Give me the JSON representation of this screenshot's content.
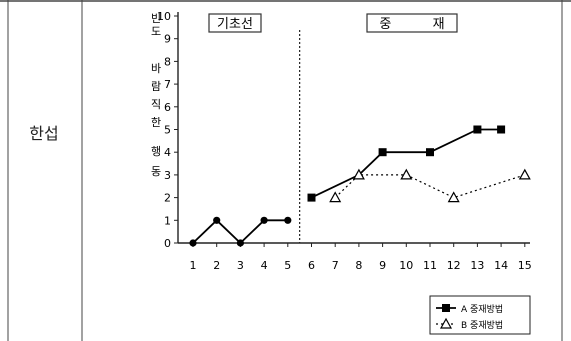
{
  "row_label": "한섭",
  "chart_data": {
    "type": "line",
    "ylabel": "바람직한 행동 빈도",
    "ylabel_top": "빈도",
    "ylabel_main": [
      "바",
      "람",
      "직",
      "한",
      "",
      "행",
      "동"
    ],
    "ylim": [
      0,
      10
    ],
    "yticks": [
      "0",
      "1",
      "2",
      "3",
      "4",
      "5",
      "6",
      "7",
      "8",
      "9",
      "10"
    ],
    "xticks": [
      "1",
      "2",
      "3",
      "4",
      "5",
      "6",
      "7",
      "8",
      "9",
      "10",
      "11",
      "12",
      "13",
      "14",
      "15"
    ],
    "phases": [
      {
        "label": "기초선"
      },
      {
        "label": "중          재"
      }
    ],
    "phase_divider_after_session": 5.5,
    "series": [
      {
        "name": "A 중재방법",
        "marker": "square",
        "line": "solid",
        "segments": [
          {
            "x": [
              1,
              2,
              3,
              4,
              5
            ],
            "y": [
              0,
              1,
              0,
              1,
              1
            ],
            "marker": "circle"
          },
          {
            "x": [
              6,
              9,
              11,
              13,
              14
            ],
            "y": [
              2,
              4,
              4,
              5,
              5
            ],
            "marker": "square",
            "via": [
              [
                8,
                3
              ]
            ]
          }
        ]
      },
      {
        "name": "B 중재방법",
        "marker": "triangle",
        "line": "dotted",
        "segments": [
          {
            "x": [
              7,
              8,
              10,
              12,
              15
            ],
            "y": [
              2,
              3,
              3,
              2,
              3
            ],
            "marker": "triangle",
            "via": [
              [
                9,
                3
              ]
            ]
          }
        ]
      }
    ],
    "legend": [
      {
        "label": "A 중재방법",
        "marker": "square",
        "line": "solid"
      },
      {
        "label": "B 중재방법",
        "marker": "triangle",
        "line": "dotted"
      }
    ],
    "legend_position": "bottom-right"
  }
}
